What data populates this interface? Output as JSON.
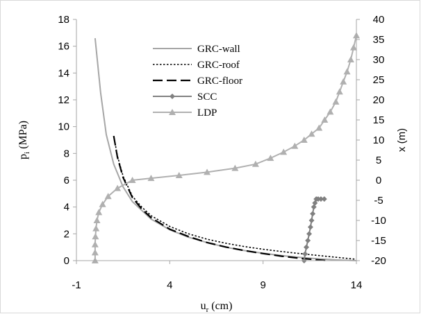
{
  "chart_data": {
    "type": "line",
    "x_axis": {
      "label": "u",
      "label_sub": "r",
      "label_unit": " (cm)",
      "range": [
        -1,
        14
      ],
      "ticks": [
        -1,
        4,
        9,
        14
      ]
    },
    "y_left": {
      "label": "p",
      "label_sub": "i",
      "label_unit": " (MPa)",
      "range": [
        0,
        18
      ],
      "ticks": [
        0,
        2,
        4,
        6,
        8,
        10,
        12,
        14,
        16,
        18
      ]
    },
    "y_right": {
      "label": "x (m)",
      "range": [
        -20,
        40
      ],
      "ticks": [
        -20,
        -15,
        -10,
        -5,
        0,
        5,
        10,
        15,
        20,
        25,
        30,
        35,
        40
      ]
    },
    "grid": false,
    "legend_position": "top-center",
    "series": [
      {
        "name": "GRC-wall",
        "axis": "left",
        "style": "solid",
        "color": "#a6a6a6",
        "x": [
          0.0,
          0.3,
          0.6,
          1.0,
          1.5,
          2.0,
          3.0,
          4.0,
          5.0,
          6.0,
          7.0,
          8.0,
          9.0,
          10.0,
          11.0,
          12.0,
          13.0,
          14.0
        ],
        "y": [
          16.6,
          12.5,
          9.4,
          7.2,
          5.5,
          4.4,
          3.1,
          2.3,
          1.75,
          1.35,
          1.0,
          0.75,
          0.55,
          0.38,
          0.24,
          0.13,
          0.05,
          0.0
        ]
      },
      {
        "name": "GRC-roof",
        "axis": "left",
        "style": "dotted",
        "color": "#000000",
        "x": [
          1.0,
          1.2,
          1.5,
          2.0,
          2.5,
          3.0,
          4.0,
          5.0,
          6.0,
          7.0,
          8.0,
          9.0,
          10.0,
          11.0,
          12.0,
          13.0,
          14.0
        ],
        "y": [
          9.3,
          7.8,
          6.3,
          4.8,
          4.0,
          3.35,
          2.55,
          2.0,
          1.6,
          1.3,
          1.05,
          0.85,
          0.68,
          0.52,
          0.38,
          0.24,
          0.1
        ]
      },
      {
        "name": "GRC-floor",
        "axis": "left",
        "style": "dashed",
        "color": "#000000",
        "x": [
          1.0,
          1.2,
          1.5,
          2.0,
          2.5,
          3.0,
          4.0,
          5.0,
          6.0,
          7.0,
          8.0,
          9.0,
          10.0,
          11.0,
          12.0,
          12.5
        ],
        "y": [
          9.3,
          7.7,
          6.2,
          4.7,
          3.85,
          3.2,
          2.35,
          1.8,
          1.35,
          1.02,
          0.75,
          0.53,
          0.33,
          0.17,
          0.05,
          0.0
        ]
      },
      {
        "name": "SCC",
        "axis": "left",
        "style": "solid-diamond",
        "color": "#808080",
        "x": [
          11.2,
          11.25,
          11.32,
          11.4,
          11.47,
          11.54,
          11.6,
          11.66,
          11.72,
          11.78,
          11.85,
          11.95,
          12.1,
          12.28
        ],
        "y": [
          0.0,
          0.5,
          1.0,
          1.5,
          2.0,
          2.5,
          3.0,
          3.5,
          4.0,
          4.3,
          4.6,
          4.6,
          4.6,
          4.6
        ]
      },
      {
        "name": "LDP",
        "axis": "right",
        "style": "solid-triangle",
        "color": "#b0b0b0",
        "x": [
          0.0,
          0.0,
          0.0,
          0.02,
          0.05,
          0.1,
          0.2,
          0.4,
          0.7,
          1.2,
          2.0,
          3.0,
          4.5,
          6.0,
          7.5,
          8.6,
          9.4,
          10.1,
          10.7,
          11.2,
          11.6,
          12.0,
          12.3,
          12.6,
          12.9,
          13.1,
          13.3,
          13.5,
          13.7,
          13.85,
          14.0
        ],
        "y": [
          -20,
          -18,
          -16,
          -14,
          -12,
          -10,
          -8,
          -6,
          -4,
          -2,
          0,
          0.5,
          1.2,
          2.0,
          3.0,
          4.0,
          5.5,
          7.0,
          8.5,
          10.0,
          11.5,
          13.0,
          15.0,
          17.0,
          19.5,
          22.0,
          24.5,
          27.0,
          30.0,
          33.0,
          36.0
        ]
      }
    ]
  }
}
